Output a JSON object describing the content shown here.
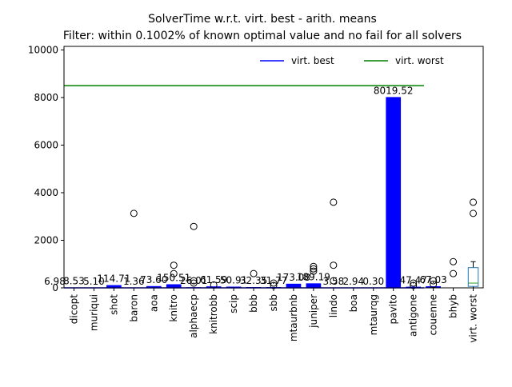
{
  "chart_data": {
    "type": "bar",
    "title": "SolverTime w.r.t. virt. best - arith. means",
    "subtitle": "Filter: within 0.1002% of known optimal value and no fail for all solvers",
    "categories": [
      "dicopt",
      "muriqui",
      "shot",
      "baron",
      "aoa",
      "knitro",
      "alphaecp",
      "knitrobb",
      "scip",
      "bbb",
      "sbb",
      "mtaurbnb",
      "juniper",
      "lindo",
      "boa",
      "mtaurqg",
      "pavito",
      "antigone",
      "couenne",
      "bhyb",
      "virt. worst"
    ],
    "values": [
      8.53,
      5.1,
      114.71,
      1.36,
      73.6,
      150.51,
      26.01,
      61.59,
      50.91,
      32.35,
      31.77,
      173.08,
      189.19,
      3.58,
      2.94,
      0.3,
      8019.52,
      47.47,
      67.03,
      null,
      null
    ],
    "value_labels": [
      "8.53",
      "5.10",
      "114.71",
      "1.36",
      "73.60",
      "150.51",
      "26.01",
      "61.59",
      "50.91",
      "32.35",
      "31.77",
      "173.08",
      "189.19",
      "3.58",
      "2.94",
      "0.30",
      "8019.52",
      "47.47",
      "67.03",
      null,
      null
    ],
    "annotations": [
      {
        "text": "6.98",
        "value": 6.98
      }
    ],
    "color": "#0000ff",
    "fliers": [
      [],
      [],
      [],
      [
        3130
      ],
      [],
      [
        950,
        600
      ],
      [
        2580,
        300,
        200
      ],
      [
        120
      ],
      [],
      [
        600
      ],
      [
        200,
        100
      ],
      [],
      [
        900,
        800,
        700
      ],
      [
        3600,
        950,
        300
      ],
      [],
      [],
      [],
      [
        200,
        100
      ],
      [
        300,
        150
      ],
      [
        1100,
        600
      ],
      [
        3600,
        3130
      ]
    ],
    "box": {
      "whislo": 0,
      "q1": 60,
      "med": 200,
      "q3": 850,
      "whishi": 1100,
      "color": "#1f77b4",
      "median_color": "#2ca02c"
    },
    "lines": [
      {
        "name": "virt. best",
        "color": "#0000ff",
        "value": 0
      },
      {
        "name": "virt. worst",
        "color": "#008000",
        "value": 8500
      }
    ],
    "legend": "upper right",
    "ylim": [
      0,
      10150
    ],
    "yticks": [
      0,
      2000,
      4000,
      6000,
      8000,
      10000
    ]
  }
}
